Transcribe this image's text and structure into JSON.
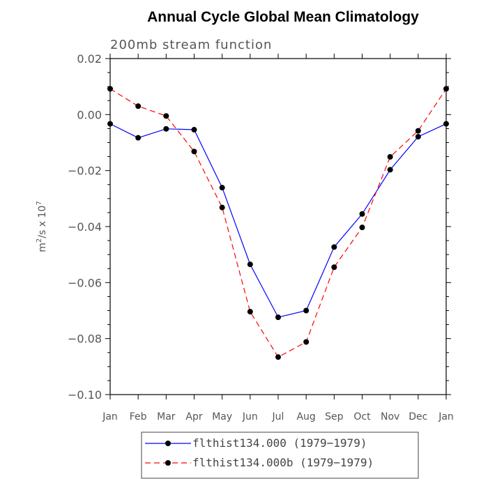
{
  "chart_data": {
    "type": "line",
    "title": "Annual Cycle Global Mean Climatology",
    "subtitle": "200mb stream function",
    "ylabel": {
      "base": "m",
      "sup1": "2",
      "mid": "/s x 10",
      "sup2": "7"
    },
    "categories": [
      "Jan",
      "Feb",
      "Mar",
      "Apr",
      "May",
      "Jun",
      "Jul",
      "Aug",
      "Sep",
      "Oct",
      "Nov",
      "Dec",
      "Jan"
    ],
    "ylim": [
      -0.1,
      0.02
    ],
    "yticks": [
      0.02,
      0.0,
      -0.02,
      -0.04,
      -0.06,
      -0.08,
      -0.1
    ],
    "ytick_labels": [
      "0.02",
      "0.00",
      "−0.02",
      "−0.04",
      "−0.06",
      "−0.08",
      "−0.10"
    ],
    "series": [
      {
        "name": "flthist134.000 (1979−1979)",
        "color": "#0000ff",
        "dash": "solid",
        "values": [
          -0.0033,
          -0.0083,
          -0.0051,
          -0.0054,
          -0.0261,
          -0.0535,
          -0.0724,
          -0.07,
          -0.0473,
          -0.0355,
          -0.0197,
          -0.0079,
          -0.0033
        ]
      },
      {
        "name": "flthist134.000b (1979−1979)",
        "color": "#ff0000",
        "dash": "dashed",
        "values": [
          0.0092,
          0.003,
          -0.0005,
          -0.0132,
          -0.0332,
          -0.0704,
          -0.0866,
          -0.0812,
          -0.0545,
          -0.0403,
          -0.0151,
          -0.0058,
          0.0092
        ]
      }
    ]
  }
}
